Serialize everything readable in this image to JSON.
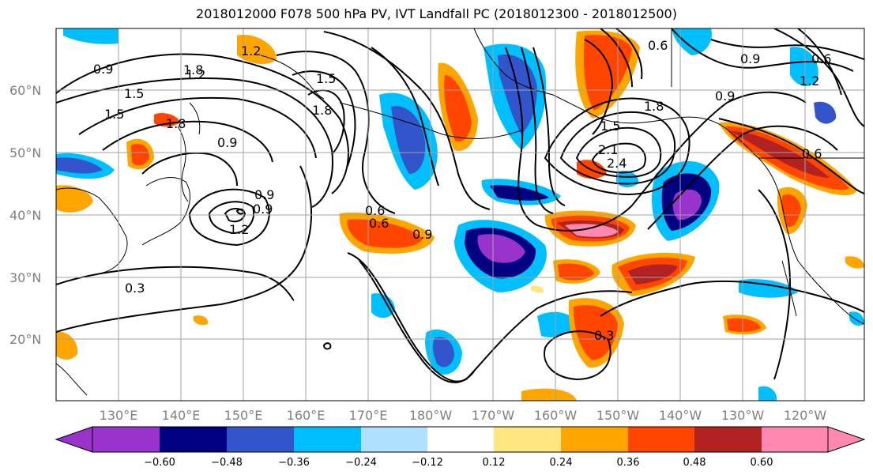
{
  "title": "2018012000 F078 500 hPa PV, IVT Landfall PC (2018012300 - 2018012500)",
  "lat_ticks": [
    "60°N",
    "50°N",
    "40°N",
    "30°N",
    "20°N"
  ],
  "lon_ticks": [
    "130°E",
    "140°E",
    "150°E",
    "160°E",
    "170°E",
    "180°W",
    "170°W",
    "160°W",
    "150°W",
    "140°W",
    "130°W",
    "120°W"
  ],
  "colorbar": {
    "tick_labels": [
      "−0.60",
      "−0.48",
      "−0.36",
      "−0.24",
      "−0.12",
      "0.12",
      "0.24",
      "0.36",
      "0.48",
      "0.60"
    ],
    "colors": [
      "#9933cc",
      "#000080",
      "#3355cc",
      "#00bfff",
      "#b0e0ff",
      "#ffffff",
      "#ffe680",
      "#ffa500",
      "#ff4500",
      "#b22222",
      "#ff88b0"
    ]
  },
  "contour_labels": [
    "0.9",
    "1.5",
    "1.8",
    "0.9",
    "1.2",
    "1.5",
    "0.9",
    "1.2",
    "0.9",
    "0.6",
    "0.6",
    "0.9",
    "1.8",
    "1.5",
    "1.8",
    "2.1",
    "1.5",
    "0.9",
    "0.6",
    "0.9",
    "1.2",
    "0.6",
    "1.2",
    "2.4",
    "1.8",
    "0.3",
    "0.3",
    "0.6"
  ]
}
